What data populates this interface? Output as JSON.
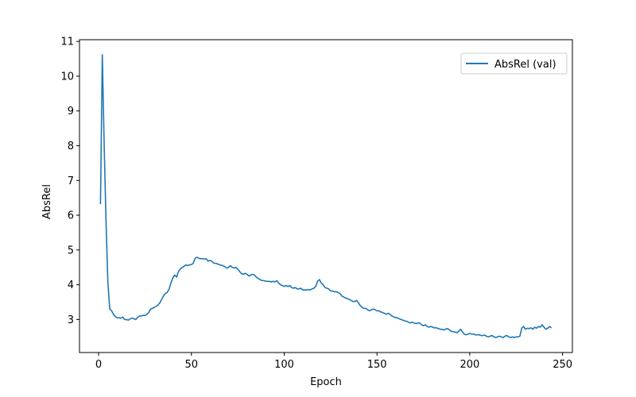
{
  "chart_data": {
    "type": "line",
    "title": "",
    "xlabel": "Epoch",
    "ylabel": "AbsRel",
    "xlim": [
      -10.3,
      255.3
    ],
    "ylim": [
      2.05,
      11.05
    ],
    "xticks": [
      0,
      50,
      100,
      150,
      200,
      250
    ],
    "yticks": [
      3,
      4,
      5,
      6,
      7,
      8,
      9,
      10,
      11
    ],
    "grid": false,
    "legend_position": "top-right",
    "series": [
      {
        "name": "AbsRel (val)",
        "color": "#1f77b4",
        "points": [
          [
            1,
            6.32
          ],
          [
            2,
            10.62
          ],
          [
            3,
            8.0
          ],
          [
            4,
            5.8
          ],
          [
            5,
            4.05
          ],
          [
            6,
            3.3
          ],
          [
            7,
            3.25
          ],
          [
            8,
            3.15
          ],
          [
            9,
            3.08
          ],
          [
            10,
            3.05
          ],
          [
            11,
            3.05
          ],
          [
            12,
            3.04
          ],
          [
            13,
            3.07
          ],
          [
            14,
            3.0
          ],
          [
            15,
            3.0
          ],
          [
            16,
            2.98
          ],
          [
            17,
            3.02
          ],
          [
            18,
            3.04
          ],
          [
            19,
            3.02
          ],
          [
            20,
            3.0
          ],
          [
            21,
            3.06
          ],
          [
            22,
            3.1
          ],
          [
            23,
            3.1
          ],
          [
            24,
            3.12
          ],
          [
            25,
            3.12
          ],
          [
            26,
            3.15
          ],
          [
            27,
            3.2
          ],
          [
            28,
            3.3
          ],
          [
            29,
            3.32
          ],
          [
            30,
            3.35
          ],
          [
            31,
            3.38
          ],
          [
            32,
            3.42
          ],
          [
            33,
            3.48
          ],
          [
            34,
            3.58
          ],
          [
            35,
            3.68
          ],
          [
            36,
            3.75
          ],
          [
            37,
            3.78
          ],
          [
            38,
            3.88
          ],
          [
            39,
            4.05
          ],
          [
            40,
            4.2
          ],
          [
            41,
            4.28
          ],
          [
            42,
            4.22
          ],
          [
            43,
            4.38
          ],
          [
            44,
            4.45
          ],
          [
            45,
            4.5
          ],
          [
            46,
            4.53
          ],
          [
            47,
            4.57
          ],
          [
            48,
            4.55
          ],
          [
            49,
            4.57
          ],
          [
            50,
            4.58
          ],
          [
            51,
            4.62
          ],
          [
            52,
            4.76
          ],
          [
            53,
            4.79
          ],
          [
            54,
            4.76
          ],
          [
            55,
            4.75
          ],
          [
            56,
            4.75
          ],
          [
            57,
            4.74
          ],
          [
            58,
            4.75
          ],
          [
            59,
            4.68
          ],
          [
            60,
            4.7
          ],
          [
            61,
            4.68
          ],
          [
            62,
            4.62
          ],
          [
            63,
            4.62
          ],
          [
            64,
            4.6
          ],
          [
            65,
            4.58
          ],
          [
            66,
            4.56
          ],
          [
            67,
            4.55
          ],
          [
            68,
            4.52
          ],
          [
            69,
            4.48
          ],
          [
            70,
            4.5
          ],
          [
            71,
            4.55
          ],
          [
            72,
            4.5
          ],
          [
            73,
            4.48
          ],
          [
            74,
            4.5
          ],
          [
            75,
            4.45
          ],
          [
            76,
            4.38
          ],
          [
            77,
            4.32
          ],
          [
            78,
            4.3
          ],
          [
            79,
            4.33
          ],
          [
            80,
            4.3
          ],
          [
            81,
            4.25
          ],
          [
            82,
            4.28
          ],
          [
            83,
            4.3
          ],
          [
            84,
            4.28
          ],
          [
            85,
            4.22
          ],
          [
            86,
            4.18
          ],
          [
            87,
            4.15
          ],
          [
            88,
            4.12
          ],
          [
            89,
            4.12
          ],
          [
            90,
            4.1
          ],
          [
            91,
            4.1
          ],
          [
            92,
            4.1
          ],
          [
            93,
            4.08
          ],
          [
            94,
            4.1
          ],
          [
            95,
            4.08
          ],
          [
            96,
            4.12
          ],
          [
            97,
            4.05
          ],
          [
            98,
            4.0
          ],
          [
            99,
            3.98
          ],
          [
            100,
            3.95
          ],
          [
            101,
            3.98
          ],
          [
            102,
            3.95
          ],
          [
            103,
            3.98
          ],
          [
            104,
            3.92
          ],
          [
            105,
            3.9
          ],
          [
            106,
            3.92
          ],
          [
            107,
            3.88
          ],
          [
            108,
            3.88
          ],
          [
            109,
            3.9
          ],
          [
            110,
            3.85
          ],
          [
            111,
            3.85
          ],
          [
            112,
            3.85
          ],
          [
            113,
            3.86
          ],
          [
            114,
            3.85
          ],
          [
            115,
            3.88
          ],
          [
            116,
            3.9
          ],
          [
            117,
            3.95
          ],
          [
            118,
            4.1
          ],
          [
            119,
            4.15
          ],
          [
            120,
            4.05
          ],
          [
            121,
            4.0
          ],
          [
            122,
            3.92
          ],
          [
            123,
            3.9
          ],
          [
            124,
            3.88
          ],
          [
            125,
            3.82
          ],
          [
            126,
            3.82
          ],
          [
            127,
            3.8
          ],
          [
            128,
            3.8
          ],
          [
            129,
            3.78
          ],
          [
            130,
            3.75
          ],
          [
            131,
            3.68
          ],
          [
            132,
            3.65
          ],
          [
            133,
            3.62
          ],
          [
            134,
            3.6
          ],
          [
            135,
            3.58
          ],
          [
            136,
            3.55
          ],
          [
            137,
            3.52
          ],
          [
            138,
            3.52
          ],
          [
            139,
            3.55
          ],
          [
            140,
            3.48
          ],
          [
            141,
            3.4
          ],
          [
            142,
            3.35
          ],
          [
            143,
            3.32
          ],
          [
            144,
            3.32
          ],
          [
            145,
            3.28
          ],
          [
            146,
            3.25
          ],
          [
            147,
            3.28
          ],
          [
            148,
            3.3
          ],
          [
            149,
            3.28
          ],
          [
            150,
            3.25
          ],
          [
            151,
            3.25
          ],
          [
            152,
            3.22
          ],
          [
            153,
            3.2
          ],
          [
            154,
            3.18
          ],
          [
            155,
            3.15
          ],
          [
            156,
            3.18
          ],
          [
            157,
            3.15
          ],
          [
            158,
            3.1
          ],
          [
            159,
            3.08
          ],
          [
            160,
            3.05
          ],
          [
            161,
            3.05
          ],
          [
            162,
            3.02
          ],
          [
            163,
            3.0
          ],
          [
            164,
            2.98
          ],
          [
            165,
            2.96
          ],
          [
            166,
            2.95
          ],
          [
            167,
            2.92
          ],
          [
            168,
            2.9
          ],
          [
            169,
            2.92
          ],
          [
            170,
            2.9
          ],
          [
            171,
            2.88
          ],
          [
            172,
            2.9
          ],
          [
            173,
            2.9
          ],
          [
            174,
            2.85
          ],
          [
            175,
            2.82
          ],
          [
            176,
            2.85
          ],
          [
            177,
            2.8
          ],
          [
            178,
            2.78
          ],
          [
            179,
            2.8
          ],
          [
            180,
            2.78
          ],
          [
            181,
            2.76
          ],
          [
            182,
            2.76
          ],
          [
            183,
            2.74
          ],
          [
            184,
            2.72
          ],
          [
            185,
            2.72
          ],
          [
            186,
            2.7
          ],
          [
            187,
            2.72
          ],
          [
            188,
            2.74
          ],
          [
            189,
            2.7
          ],
          [
            190,
            2.66
          ],
          [
            191,
            2.65
          ],
          [
            192,
            2.64
          ],
          [
            193,
            2.62
          ],
          [
            194,
            2.66
          ],
          [
            195,
            2.72
          ],
          [
            196,
            2.65
          ],
          [
            197,
            2.58
          ],
          [
            198,
            2.56
          ],
          [
            199,
            2.58
          ],
          [
            200,
            2.6
          ],
          [
            201,
            2.58
          ],
          [
            202,
            2.58
          ],
          [
            203,
            2.56
          ],
          [
            204,
            2.56
          ],
          [
            205,
            2.56
          ],
          [
            206,
            2.54
          ],
          [
            207,
            2.54
          ],
          [
            208,
            2.55
          ],
          [
            209,
            2.52
          ],
          [
            210,
            2.5
          ],
          [
            211,
            2.52
          ],
          [
            212,
            2.54
          ],
          [
            213,
            2.5
          ],
          [
            214,
            2.48
          ],
          [
            215,
            2.5
          ],
          [
            216,
            2.52
          ],
          [
            217,
            2.5
          ],
          [
            218,
            2.48
          ],
          [
            219,
            2.52
          ],
          [
            220,
            2.54
          ],
          [
            221,
            2.5
          ],
          [
            222,
            2.48
          ],
          [
            223,
            2.5
          ],
          [
            224,
            2.48
          ],
          [
            225,
            2.5
          ],
          [
            226,
            2.5
          ],
          [
            227,
            2.52
          ],
          [
            228,
            2.75
          ],
          [
            229,
            2.8
          ],
          [
            230,
            2.72
          ],
          [
            231,
            2.75
          ],
          [
            232,
            2.74
          ],
          [
            233,
            2.76
          ],
          [
            234,
            2.72
          ],
          [
            235,
            2.78
          ],
          [
            236,
            2.75
          ],
          [
            237,
            2.8
          ],
          [
            238,
            2.78
          ],
          [
            239,
            2.85
          ],
          [
            240,
            2.78
          ],
          [
            241,
            2.72
          ],
          [
            242,
            2.75
          ],
          [
            243,
            2.8
          ],
          [
            244,
            2.76
          ]
        ]
      }
    ]
  }
}
